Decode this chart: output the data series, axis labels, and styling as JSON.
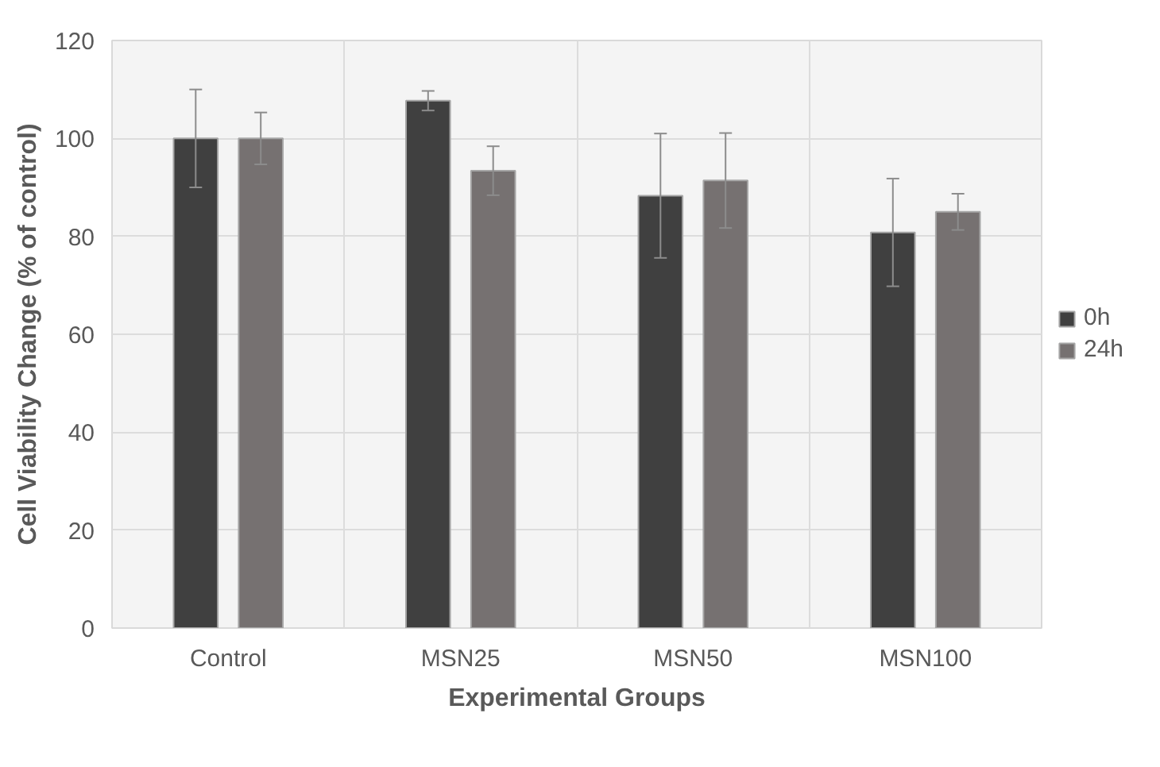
{
  "chart_data": {
    "type": "bar",
    "xlabel": "Experimental Groups",
    "ylabel": "Cell Viability Change (% of control)",
    "categories": [
      "Control",
      "MSN25",
      "MSN50",
      "MSN100"
    ],
    "series": [
      {
        "name": "0h",
        "color": "#404040",
        "values": [
          100,
          107.7,
          88.3,
          80.8
        ],
        "errors": [
          10,
          2,
          12.7,
          11
        ]
      },
      {
        "name": "24h",
        "color": "#767171",
        "values": [
          100,
          93.4,
          91.4,
          85
        ],
        "errors": [
          5.3,
          5,
          9.7,
          3.7
        ]
      }
    ],
    "ylim": [
      0,
      120
    ],
    "yticks": [
      0,
      20,
      40,
      60,
      80,
      100,
      120
    ],
    "grid": true,
    "legend": "right"
  }
}
